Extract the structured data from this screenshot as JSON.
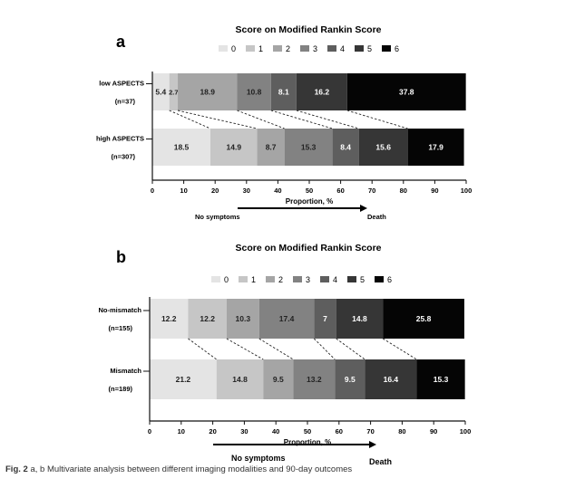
{
  "chart_data": [
    {
      "type": "bar",
      "orientation": "horizontal",
      "stacked": true,
      "panel_label": "a",
      "title": "Score on Modified Rankin Score",
      "legend": [
        "0",
        "1",
        "2",
        "3",
        "4",
        "5",
        "6"
      ],
      "legend_position": "top",
      "colors": [
        "#e4e4e4",
        "#c6c6c6",
        "#a5a5a5",
        "#828282",
        "#5e5e5e",
        "#363636",
        "#050505"
      ],
      "categories": [
        {
          "label": "low ASPECTS",
          "n": "(n=37)"
        },
        {
          "label": "high ASPECTS",
          "n": "(n=307)"
        }
      ],
      "series": [
        {
          "name": "0",
          "values": [
            5.4,
            18.5
          ],
          "labels": [
            "5.4",
            "18.5"
          ]
        },
        {
          "name": "1",
          "values": [
            2.7,
            14.9
          ],
          "labels": [
            "2.7",
            "14.9"
          ]
        },
        {
          "name": "2",
          "values": [
            18.9,
            8.7
          ],
          "labels": [
            "18.9",
            "8.7"
          ]
        },
        {
          "name": "3",
          "values": [
            10.8,
            15.3
          ],
          "labels": [
            "10.8",
            "15.3"
          ]
        },
        {
          "name": "4",
          "values": [
            8.1,
            8.4
          ],
          "labels": [
            "8.1",
            "8.4"
          ]
        },
        {
          "name": "5",
          "values": [
            16.2,
            15.6
          ],
          "labels": [
            "16.2",
            "15.6"
          ]
        },
        {
          "name": "6",
          "values": [
            37.8,
            17.9
          ],
          "labels": [
            "37.8",
            "17.9"
          ]
        }
      ],
      "xlabel": "Proportion, %",
      "xlim": [
        0,
        100
      ],
      "xticks": [
        "0",
        "10",
        "20",
        "30",
        "40",
        "50",
        "60",
        "70",
        "80",
        "90",
        "100"
      ],
      "arrow_start": "No symptoms",
      "arrow_end": "Death"
    },
    {
      "type": "bar",
      "orientation": "horizontal",
      "stacked": true,
      "panel_label": "b",
      "title": "Score on Modified Rankin Score",
      "legend": [
        "0",
        "1",
        "2",
        "3",
        "4",
        "5",
        "6"
      ],
      "legend_position": "top",
      "colors": [
        "#e4e4e4",
        "#c6c6c6",
        "#a5a5a5",
        "#828282",
        "#5e5e5e",
        "#363636",
        "#050505"
      ],
      "categories": [
        {
          "label": "No-mismatch",
          "n": "(n=155)"
        },
        {
          "label": "Mismatch",
          "n": "(n=189)"
        }
      ],
      "series": [
        {
          "name": "0",
          "values": [
            12.2,
            21.2
          ],
          "labels": [
            "12.2",
            "21.2"
          ]
        },
        {
          "name": "1",
          "values": [
            12.2,
            14.8
          ],
          "labels": [
            "12.2",
            "14.8"
          ]
        },
        {
          "name": "2",
          "values": [
            10.3,
            9.5
          ],
          "labels": [
            "10.3",
            "9.5"
          ]
        },
        {
          "name": "3",
          "values": [
            17.4,
            13.2
          ],
          "labels": [
            "17.4",
            "13.2"
          ]
        },
        {
          "name": "4",
          "values": [
            7.0,
            9.5
          ],
          "labels": [
            "7",
            "9.5"
          ]
        },
        {
          "name": "5",
          "values": [
            14.8,
            16.4
          ],
          "labels": [
            "14.8",
            "16.4"
          ]
        },
        {
          "name": "6",
          "values": [
            25.8,
            15.3
          ],
          "labels": [
            "25.8",
            "15.3"
          ]
        }
      ],
      "xlabel": "Proportion, %",
      "xlim": [
        0,
        100
      ],
      "xticks": [
        "0",
        "10",
        "20",
        "30",
        "40",
        "50",
        "60",
        "70",
        "80",
        "90",
        "100"
      ],
      "arrow_start": "No symptoms",
      "arrow_end": "Death"
    }
  ],
  "caption": {
    "label": "Fig. 2",
    "text": "a, b Multivariate analysis between different imaging modalities and 90-day outcomes"
  }
}
